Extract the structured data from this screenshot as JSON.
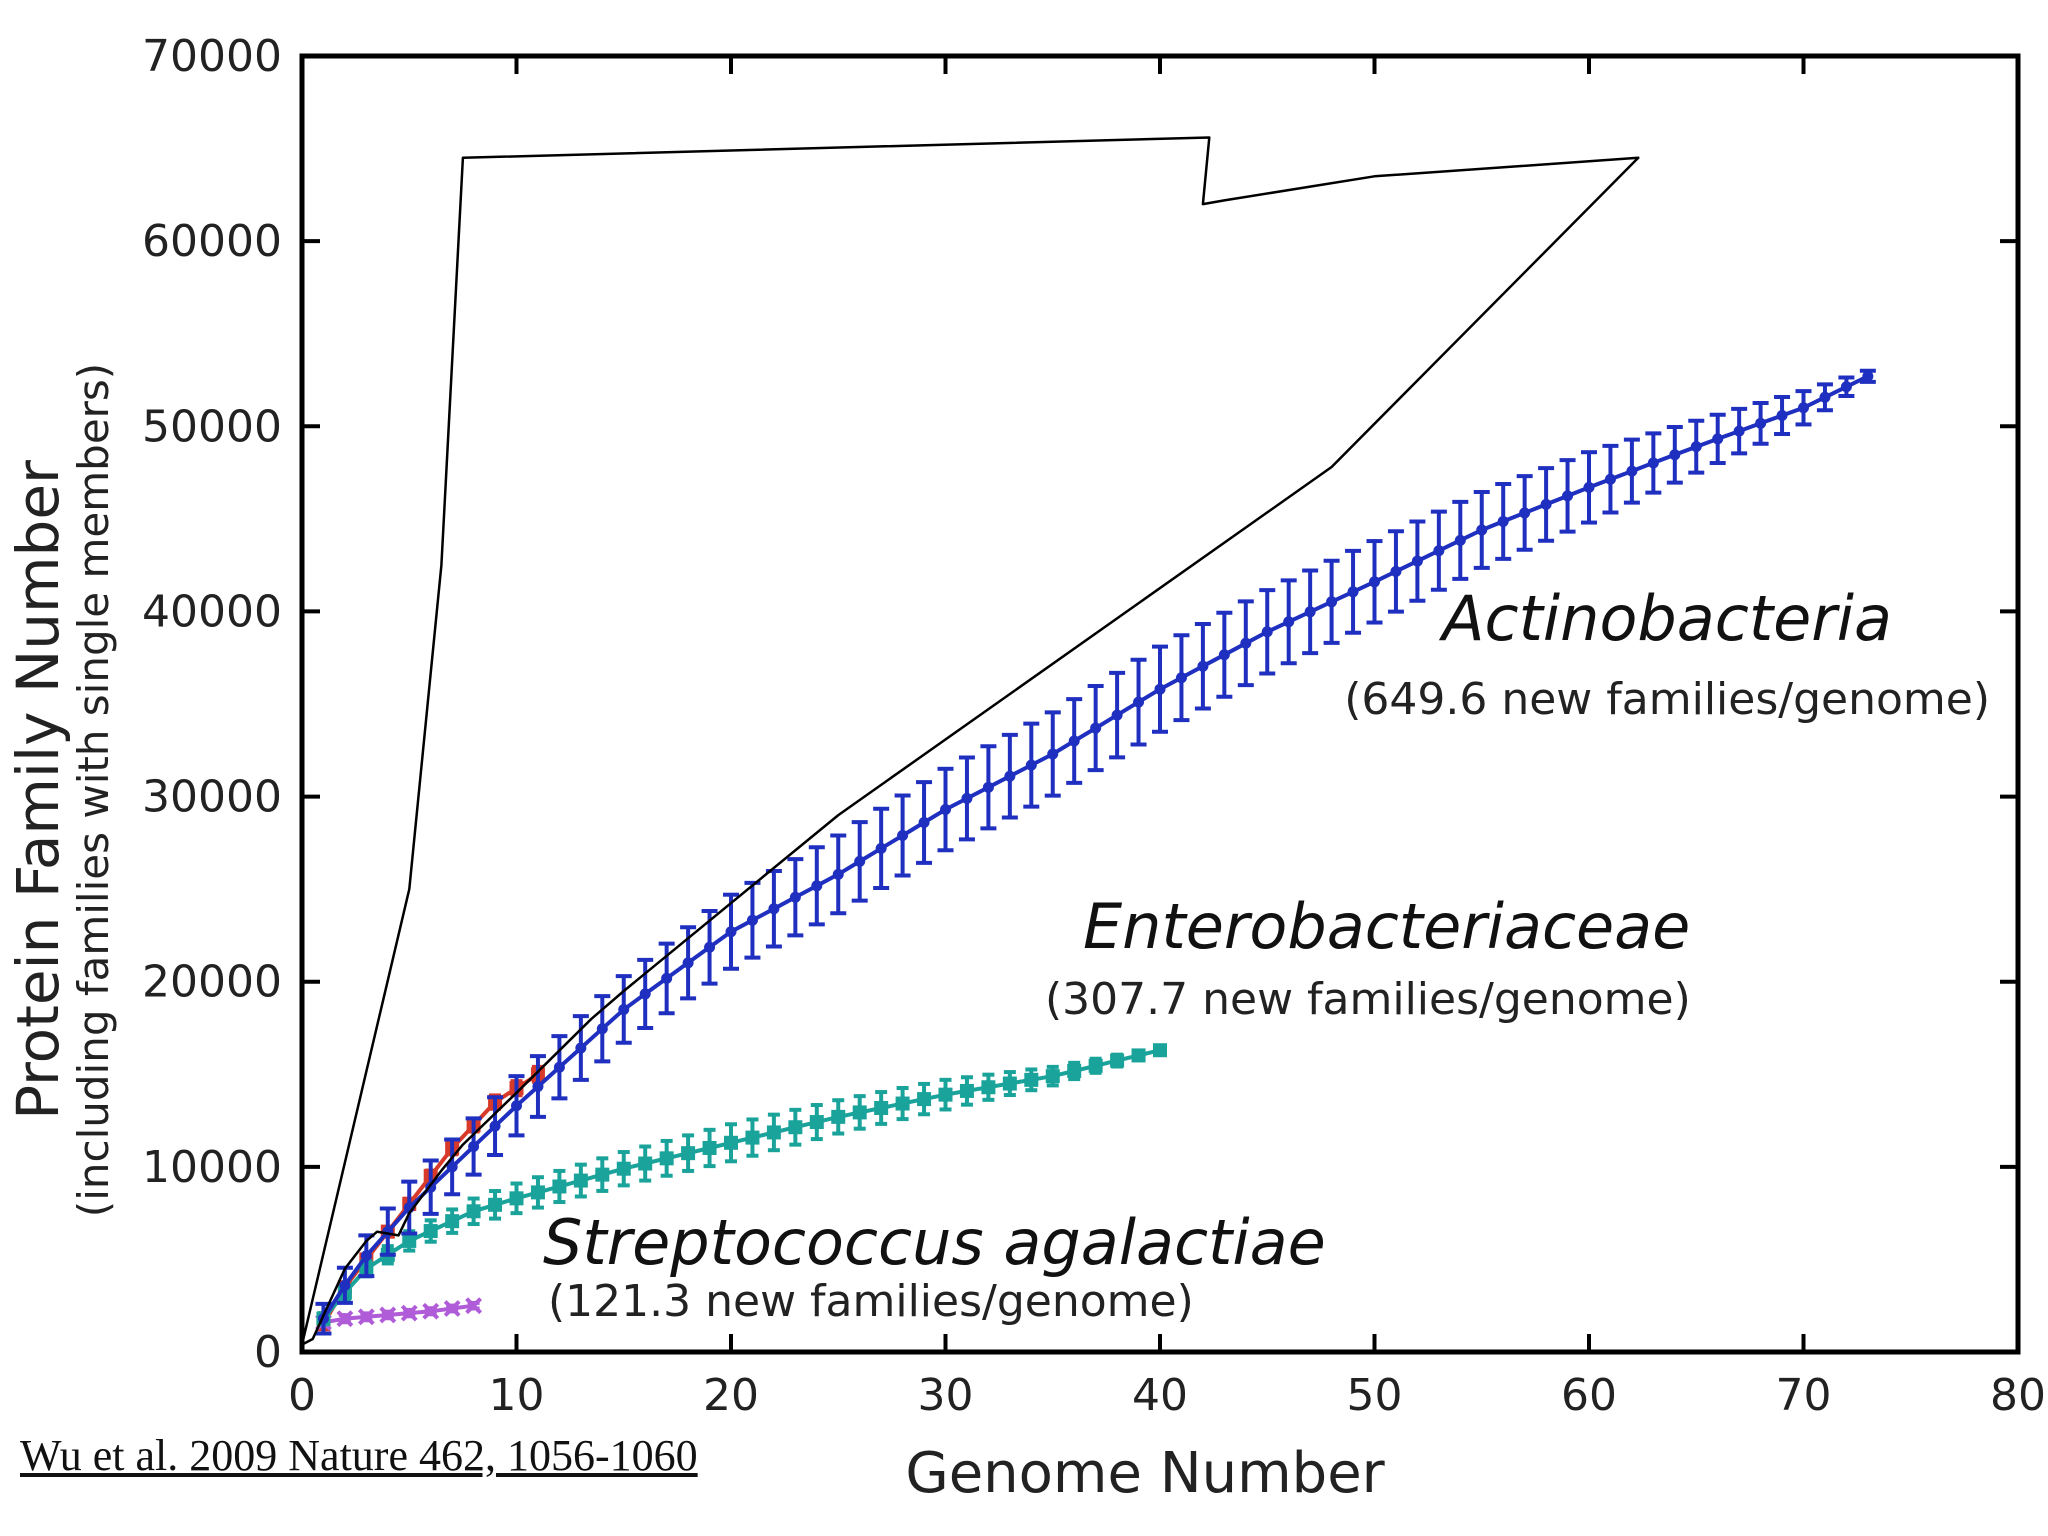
{
  "chart_data": {
    "type": "line",
    "ylabel": "Protein Family Number",
    "ylabel_sub": "(including families with single members)",
    "xlabel": "Genome Number",
    "xlim": [
      0,
      80
    ],
    "ylim": [
      0,
      70000
    ],
    "x_ticks": [
      "0",
      "10",
      "20",
      "30",
      "40",
      "50",
      "60",
      "70",
      "80"
    ],
    "y_ticks": [
      "0",
      "10000",
      "20000",
      "30000",
      "40000",
      "50000",
      "60000",
      "70000"
    ],
    "grid": false,
    "series": [
      {
        "name": "Actinobacteria",
        "note": "(649.6 new families/genome)",
        "color": "#1f2fbf",
        "marker": "circle",
        "n": 73,
        "points": [
          [
            1,
            1800
          ],
          [
            2,
            3600
          ],
          [
            3,
            5200
          ],
          [
            5,
            7800
          ],
          [
            7,
            10000
          ],
          [
            10,
            13300
          ],
          [
            15,
            18500
          ],
          [
            20,
            22700
          ],
          [
            25,
            25800
          ],
          [
            30,
            29300
          ],
          [
            35,
            32300
          ],
          [
            40,
            35800
          ],
          [
            45,
            38900
          ],
          [
            50,
            41600
          ],
          [
            55,
            44400
          ],
          [
            60,
            46700
          ],
          [
            65,
            48900
          ],
          [
            70,
            51000
          ],
          [
            73,
            52700
          ]
        ],
        "error": [
          [
            1,
            800
          ],
          [
            5,
            1400
          ],
          [
            10,
            1600
          ],
          [
            20,
            2000
          ],
          [
            30,
            2200
          ],
          [
            40,
            2300
          ],
          [
            50,
            2200
          ],
          [
            60,
            1900
          ],
          [
            70,
            900
          ],
          [
            73,
            300
          ]
        ]
      },
      {
        "name": "Enterobacteriaceae",
        "note": "(307.7 new families/genome)",
        "color": "#1aa39a",
        "marker": "square",
        "n": 40,
        "points": [
          [
            1,
            1800
          ],
          [
            2,
            3200
          ],
          [
            3,
            4500
          ],
          [
            5,
            6000
          ],
          [
            8,
            7600
          ],
          [
            10,
            8300
          ],
          [
            15,
            9900
          ],
          [
            20,
            11300
          ],
          [
            25,
            12700
          ],
          [
            30,
            13900
          ],
          [
            35,
            14900
          ],
          [
            40,
            16300
          ]
        ],
        "error": [
          [
            1,
            300
          ],
          [
            10,
            800
          ],
          [
            20,
            1000
          ],
          [
            30,
            800
          ],
          [
            40,
            200
          ]
        ]
      },
      {
        "name": "Streptococcus agalactiae",
        "note": "(121.3 new families/genome)",
        "color": "#b05cd8",
        "marker": "x",
        "n": 8,
        "points": [
          [
            1,
            1600
          ],
          [
            2,
            1800
          ],
          [
            3,
            1900
          ],
          [
            4,
            2000
          ],
          [
            5,
            2100
          ],
          [
            6,
            2200
          ],
          [
            7,
            2350
          ],
          [
            8,
            2500
          ]
        ],
        "error": [
          [
            1,
            200
          ],
          [
            8,
            150
          ]
        ]
      },
      {
        "color": "#d83a2a",
        "marker": "square",
        "n": 11,
        "points": [
          [
            1,
            1500
          ],
          [
            2,
            3500
          ],
          [
            3,
            5000
          ],
          [
            5,
            8000
          ],
          [
            7,
            11000
          ],
          [
            9,
            13500
          ],
          [
            11,
            15000
          ]
        ],
        "error": [
          [
            1,
            200
          ],
          [
            11,
            400
          ]
        ]
      }
    ],
    "annotation_outline": {
      "stroke": "#000000",
      "points": [
        [
          0,
          400
        ],
        [
          5,
          25000
        ],
        [
          6.5,
          42500
        ],
        [
          7.5,
          64500
        ],
        [
          42.3,
          65600
        ],
        [
          42,
          62000
        ],
        [
          43,
          62200
        ],
        [
          50,
          63500
        ],
        [
          62.3,
          64500
        ],
        [
          48,
          47800
        ],
        [
          25,
          29000
        ],
        [
          15,
          19500
        ],
        [
          13.5,
          18000
        ],
        [
          10,
          14000
        ],
        [
          7.5,
          11200
        ],
        [
          6.5,
          9800
        ],
        [
          5,
          7500
        ],
        [
          4.5,
          6300
        ],
        [
          3.5,
          6500
        ],
        [
          3,
          6000
        ],
        [
          2,
          4500
        ],
        [
          0.5,
          700
        ]
      ]
    }
  },
  "citation": "Wu et al. 2009 Nature 462, 1056-1060"
}
